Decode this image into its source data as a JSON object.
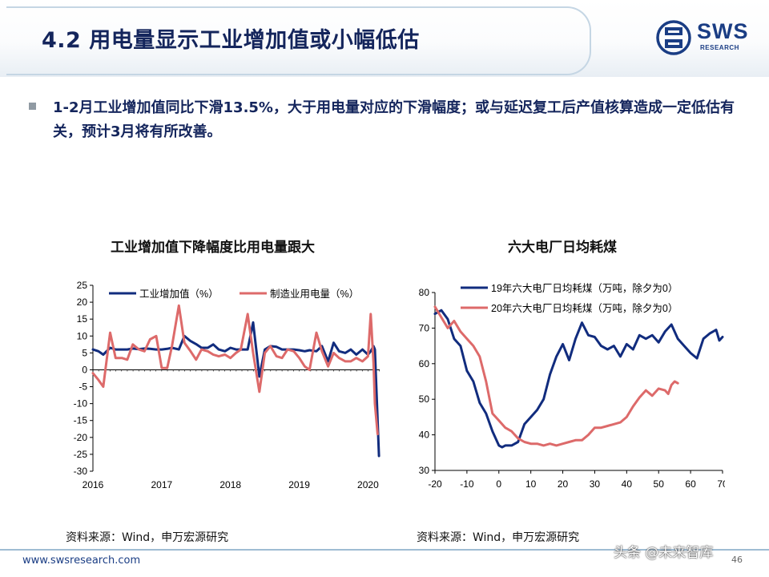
{
  "header": {
    "title": "4.2 用电量显示工业增加值或小幅低估",
    "logo": {
      "name": "SWS",
      "sub": "RESEARCH",
      "color": "#1a3d84"
    }
  },
  "bullet": {
    "text": "1-2月工业增加值同比下滑13.5%，大于用电量对应的下滑幅度；或与延迟复工后产值核算造成一定低估有关，预计3月将有所改善。"
  },
  "chart_data": [
    {
      "type": "line",
      "title": "工业增加值下降幅度比用电量跟大",
      "xlabel": "",
      "ylabel": "",
      "x_tick_labels": [
        "2016",
        "2017",
        "2018",
        "2019",
        "2020"
      ],
      "xlim": [
        2016,
        2020.17
      ],
      "ylim": [
        -30,
        25
      ],
      "y_ticks": [
        25,
        20,
        15,
        10,
        5,
        0,
        -5,
        -10,
        -15,
        -20,
        -25,
        -30
      ],
      "legend": "top",
      "grid": false,
      "series": [
        {
          "name": "工业增加值（%）",
          "color": "#112c7e",
          "points": [
            [
              2016.0,
              6.0
            ],
            [
              2016.08,
              5.5
            ],
            [
              2016.15,
              4.5
            ],
            [
              2016.25,
              6.5
            ],
            [
              2016.33,
              6.0
            ],
            [
              2016.42,
              6.0
            ],
            [
              2016.5,
              6.0
            ],
            [
              2016.58,
              6.3
            ],
            [
              2016.67,
              6.1
            ],
            [
              2016.75,
              6.3
            ],
            [
              2016.83,
              6.2
            ],
            [
              2016.92,
              6.0
            ],
            [
              2017.0,
              6.0
            ],
            [
              2017.08,
              6.2
            ],
            [
              2017.15,
              6.5
            ],
            [
              2017.25,
              6.0
            ],
            [
              2017.33,
              10.0
            ],
            [
              2017.42,
              8.5
            ],
            [
              2017.5,
              7.6
            ],
            [
              2017.58,
              6.5
            ],
            [
              2017.67,
              6.5
            ],
            [
              2017.75,
              7.5
            ],
            [
              2017.83,
              6.0
            ],
            [
              2017.92,
              5.5
            ],
            [
              2018.0,
              6.5
            ],
            [
              2018.08,
              6.0
            ],
            [
              2018.15,
              6.0
            ],
            [
              2018.25,
              6.0
            ],
            [
              2018.33,
              14.0
            ],
            [
              2018.42,
              -2.0
            ],
            [
              2018.5,
              6.0
            ],
            [
              2018.58,
              7.0
            ],
            [
              2018.67,
              6.8
            ],
            [
              2018.75,
              6.0
            ],
            [
              2018.83,
              6.0
            ],
            [
              2018.92,
              6.0
            ],
            [
              2019.0,
              5.8
            ],
            [
              2019.08,
              5.5
            ],
            [
              2019.15,
              5.8
            ],
            [
              2019.25,
              5.5
            ],
            [
              2019.33,
              7.0
            ],
            [
              2019.42,
              2.5
            ],
            [
              2019.5,
              8.0
            ],
            [
              2019.58,
              5.5
            ],
            [
              2019.67,
              5.0
            ],
            [
              2019.75,
              6.0
            ],
            [
              2019.83,
              4.5
            ],
            [
              2019.92,
              6.0
            ],
            [
              2020.0,
              4.5
            ],
            [
              2020.04,
              5.5
            ],
            [
              2020.08,
              7.0
            ],
            [
              2020.1,
              6.0
            ],
            [
              2020.13,
              -10.0
            ],
            [
              2020.16,
              -25.5
            ]
          ]
        },
        {
          "name": "制造业用电量（%）",
          "color": "#dd6a6a",
          "points": [
            [
              2016.0,
              -1.0
            ],
            [
              2016.08,
              -3.0
            ],
            [
              2016.15,
              -5.0
            ],
            [
              2016.25,
              11.0
            ],
            [
              2016.33,
              3.5
            ],
            [
              2016.42,
              3.5
            ],
            [
              2016.5,
              3.0
            ],
            [
              2016.58,
              7.5
            ],
            [
              2016.67,
              6.0
            ],
            [
              2016.75,
              5.5
            ],
            [
              2016.83,
              9.0
            ],
            [
              2016.92,
              10.0
            ],
            [
              2017.0,
              0.5
            ],
            [
              2017.08,
              0.5
            ],
            [
              2017.15,
              7.0
            ],
            [
              2017.25,
              19.0
            ],
            [
              2017.33,
              8.0
            ],
            [
              2017.42,
              5.5
            ],
            [
              2017.5,
              3.0
            ],
            [
              2017.58,
              6.0
            ],
            [
              2017.67,
              5.5
            ],
            [
              2017.75,
              4.5
            ],
            [
              2017.83,
              4.0
            ],
            [
              2017.92,
              4.5
            ],
            [
              2018.0,
              3.5
            ],
            [
              2018.08,
              5.0
            ],
            [
              2018.15,
              6.0
            ],
            [
              2018.25,
              16.5
            ],
            [
              2018.33,
              5.0
            ],
            [
              2018.42,
              -6.5
            ],
            [
              2018.5,
              5.0
            ],
            [
              2018.58,
              7.0
            ],
            [
              2018.67,
              4.0
            ],
            [
              2018.75,
              3.5
            ],
            [
              2018.83,
              6.0
            ],
            [
              2018.92,
              5.5
            ],
            [
              2019.0,
              3.5
            ],
            [
              2019.08,
              1.0
            ],
            [
              2019.15,
              0.0
            ],
            [
              2019.25,
              11.0
            ],
            [
              2019.33,
              5.5
            ],
            [
              2019.42,
              1.0
            ],
            [
              2019.5,
              5.0
            ],
            [
              2019.58,
              3.5
            ],
            [
              2019.67,
              2.5
            ],
            [
              2019.75,
              2.5
            ],
            [
              2019.83,
              3.5
            ],
            [
              2019.92,
              2.5
            ],
            [
              2020.0,
              4.0
            ],
            [
              2020.04,
              16.5
            ],
            [
              2020.08,
              2.0
            ],
            [
              2020.1,
              -10.0
            ],
            [
              2020.14,
              -19.0
            ]
          ]
        }
      ]
    },
    {
      "type": "line",
      "title": "六大电厂日均耗煤",
      "xlabel": "",
      "ylabel": "",
      "xlim": [
        -20,
        70
      ],
      "ylim": [
        30,
        80
      ],
      "x_ticks": [
        -20,
        -10,
        0,
        10,
        20,
        30,
        40,
        50,
        60,
        70
      ],
      "y_ticks": [
        30,
        40,
        50,
        60,
        70,
        80
      ],
      "legend": "top",
      "grid": false,
      "series": [
        {
          "name": "19年六大电厂日均耗煤（万吨，除夕为0）",
          "color": "#112c7e",
          "points": [
            [
              -20,
              74
            ],
            [
              -18,
              75
            ],
            [
              -16,
              72.5
            ],
            [
              -14,
              67
            ],
            [
              -12,
              65
            ],
            [
              -10,
              58
            ],
            [
              -8,
              55
            ],
            [
              -6,
              49
            ],
            [
              -4,
              46
            ],
            [
              -2,
              41
            ],
            [
              0,
              37
            ],
            [
              1,
              36.5
            ],
            [
              2,
              37
            ],
            [
              4,
              37
            ],
            [
              6,
              38
            ],
            [
              8,
              43
            ],
            [
              10,
              45
            ],
            [
              12,
              47
            ],
            [
              14,
              50
            ],
            [
              16,
              57
            ],
            [
              18,
              62
            ],
            [
              20,
              65.5
            ],
            [
              22,
              61
            ],
            [
              24,
              67
            ],
            [
              26,
              71.5
            ],
            [
              28,
              68
            ],
            [
              30,
              67.5
            ],
            [
              32,
              65
            ],
            [
              34,
              64
            ],
            [
              36,
              65
            ],
            [
              38,
              62
            ],
            [
              40,
              65.5
            ],
            [
              42,
              64
            ],
            [
              44,
              68
            ],
            [
              46,
              67
            ],
            [
              48,
              68
            ],
            [
              50,
              66
            ],
            [
              52,
              69
            ],
            [
              54,
              71
            ],
            [
              56,
              67
            ],
            [
              58,
              65
            ],
            [
              60,
              63
            ],
            [
              62,
              61.5
            ],
            [
              64,
              67
            ],
            [
              66,
              68.5
            ],
            [
              68,
              69.5
            ],
            [
              69,
              66.5
            ],
            [
              70,
              67.5
            ]
          ]
        },
        {
          "name": "20年六大电厂日均耗煤（万吨，除夕为0）",
          "color": "#dd6a6a",
          "points": [
            [
              -20,
              76
            ],
            [
              -18,
              73
            ],
            [
              -16,
              70
            ],
            [
              -14,
              72
            ],
            [
              -12,
              69
            ],
            [
              -10,
              67
            ],
            [
              -8,
              65
            ],
            [
              -6,
              62
            ],
            [
              -4,
              55
            ],
            [
              -2,
              46
            ],
            [
              0,
              44
            ],
            [
              2,
              42
            ],
            [
              4,
              41
            ],
            [
              6,
              39
            ],
            [
              8,
              38
            ],
            [
              10,
              37.5
            ],
            [
              12,
              37.5
            ],
            [
              14,
              37
            ],
            [
              16,
              37.5
            ],
            [
              18,
              37
            ],
            [
              20,
              37.5
            ],
            [
              22,
              38
            ],
            [
              24,
              38.5
            ],
            [
              26,
              38.5
            ],
            [
              28,
              40
            ],
            [
              30,
              42
            ],
            [
              32,
              42
            ],
            [
              34,
              42.5
            ],
            [
              36,
              43
            ],
            [
              38,
              43.5
            ],
            [
              40,
              45
            ],
            [
              42,
              48
            ],
            [
              44,
              50.5
            ],
            [
              46,
              52.5
            ],
            [
              48,
              51
            ],
            [
              50,
              53
            ],
            [
              52,
              52.5
            ],
            [
              53,
              51.5
            ],
            [
              54,
              54
            ],
            [
              55,
              55
            ],
            [
              56,
              54.5
            ]
          ]
        }
      ]
    }
  ],
  "sources": {
    "left": "资料来源：Wind，申万宏源研究",
    "right": "资料来源：Wind，申万宏源研究"
  },
  "footer": {
    "url": "www.swsresearch.com",
    "page": "46",
    "watermark": "头条 @未来智库"
  }
}
